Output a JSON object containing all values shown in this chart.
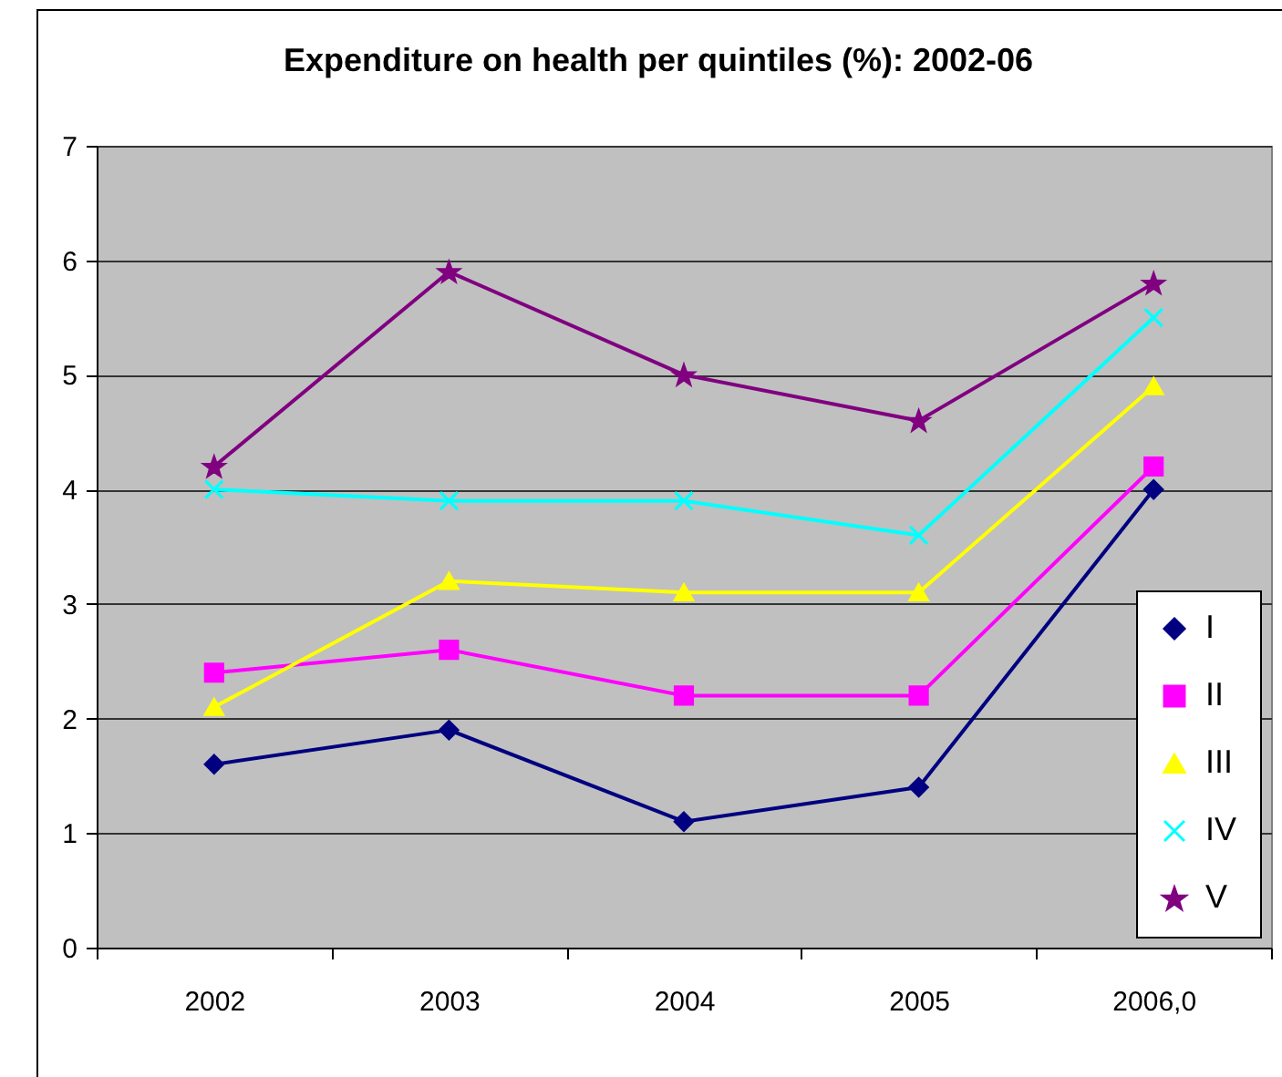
{
  "chart_data": {
    "type": "line",
    "title": "Expenditure on health per quintiles (%): 2002-06",
    "categories": [
      "2002",
      "2003",
      "2004",
      "2005",
      "2006,0"
    ],
    "series": [
      {
        "name": "I",
        "color": "#000080",
        "marker": "diamond",
        "values": [
          1.6,
          1.9,
          1.1,
          1.4,
          4.0
        ]
      },
      {
        "name": "II",
        "color": "#ff00ff",
        "marker": "square",
        "values": [
          2.4,
          2.6,
          2.2,
          2.2,
          4.2
        ]
      },
      {
        "name": "III",
        "color": "#ffff00",
        "marker": "triangle",
        "values": [
          2.1,
          3.2,
          3.1,
          3.1,
          4.9
        ]
      },
      {
        "name": "IV",
        "color": "#00ffff",
        "marker": "cross",
        "values": [
          4.0,
          3.9,
          3.9,
          3.6,
          5.5
        ]
      },
      {
        "name": "V",
        "color": "#800080",
        "marker": "star",
        "values": [
          4.2,
          5.9,
          5.0,
          4.6,
          5.8
        ]
      }
    ],
    "ylim": [
      0,
      7
    ],
    "yticks": [
      0,
      1,
      2,
      3,
      4,
      5,
      6,
      7
    ],
    "grid": "y",
    "legend": "bottom right"
  }
}
